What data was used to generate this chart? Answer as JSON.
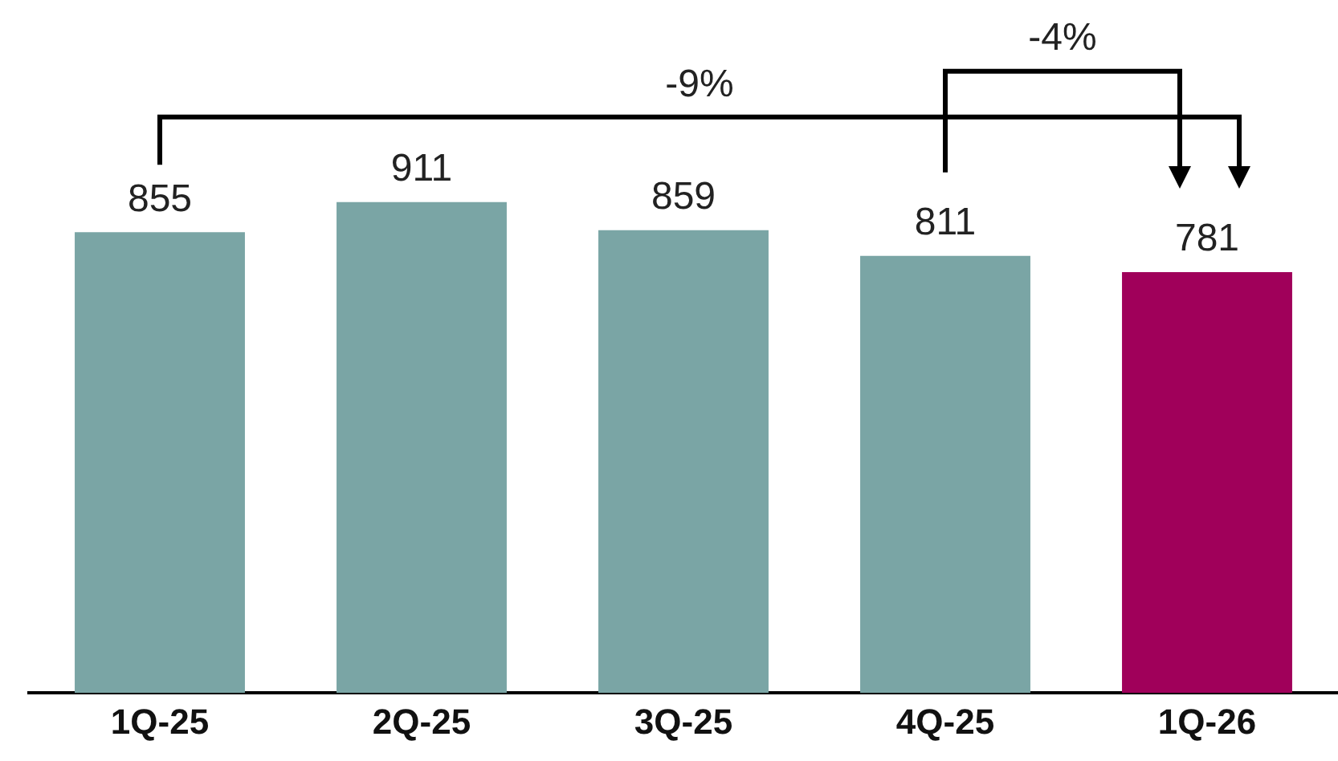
{
  "chart_data": {
    "type": "bar",
    "categories": [
      "1Q-25",
      "2Q-25",
      "3Q-25",
      "4Q-25",
      "1Q-26"
    ],
    "values": [
      855,
      911,
      859,
      811,
      781
    ],
    "colors": [
      "#7aa5a5",
      "#7aa5a5",
      "#7aa5a5",
      "#7aa5a5",
      "#a0005a"
    ],
    "data_labels": true,
    "grid": false,
    "legend": false,
    "tick_labels": "x",
    "annotations": [
      "-9%",
      "-4%"
    ]
  }
}
